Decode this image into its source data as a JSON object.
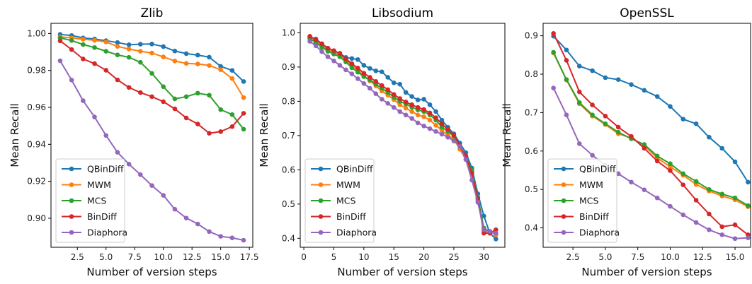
{
  "chart_data": [
    {
      "type": "line",
      "title": "Zlib",
      "xlabel": "Number of version steps",
      "ylabel": "Mean Recall",
      "xlim": [
        0.2,
        17.8
      ],
      "ylim": [
        0.8843,
        1.0055
      ],
      "xticks": [
        2.5,
        5.0,
        7.5,
        10.0,
        12.5,
        15.0,
        17.5
      ],
      "xtick_labels": [
        "2.5",
        "5.0",
        "7.5",
        "10.0",
        "12.5",
        "15.0",
        "17.5"
      ],
      "yticks": [
        0.9,
        0.92,
        0.94,
        0.96,
        0.98,
        1.0
      ],
      "ytick_labels": [
        "0.90",
        "0.92",
        "0.94",
        "0.96",
        "0.98",
        "1.00"
      ],
      "legend_position": "lower-left",
      "x": [
        1,
        2,
        3,
        4,
        5,
        6,
        7,
        8,
        9,
        10,
        11,
        12,
        13,
        14,
        15,
        16,
        17
      ],
      "series": [
        {
          "name": "QBinDiff",
          "color": "#1f77b4",
          "values": [
            0.9995,
            0.9989,
            0.9976,
            0.997,
            0.9961,
            0.9951,
            0.9939,
            0.9942,
            0.9943,
            0.9929,
            0.9905,
            0.9891,
            0.9883,
            0.9872,
            0.9822,
            0.98,
            0.974
          ]
        },
        {
          "name": "MWM",
          "color": "#ff7f0e",
          "values": [
            0.9982,
            0.9976,
            0.9969,
            0.9963,
            0.9954,
            0.993,
            0.9916,
            0.9904,
            0.9894,
            0.9873,
            0.9851,
            0.9838,
            0.9835,
            0.9827,
            0.9804,
            0.9756,
            0.9653
          ]
        },
        {
          "name": "MCS",
          "color": "#2ca02c",
          "values": [
            0.9976,
            0.9962,
            0.994,
            0.9924,
            0.9904,
            0.9884,
            0.9871,
            0.9844,
            0.9784,
            0.9712,
            0.9646,
            0.9658,
            0.9677,
            0.9666,
            0.9588,
            0.9561,
            0.9482
          ]
        },
        {
          "name": "BinDiff",
          "color": "#d62728",
          "values": [
            0.996,
            0.9913,
            0.9862,
            0.9837,
            0.9801,
            0.9749,
            0.9708,
            0.968,
            0.9658,
            0.9631,
            0.9592,
            0.9543,
            0.951,
            0.946,
            0.9469,
            0.9496,
            0.9568
          ]
        },
        {
          "name": "Diaphora",
          "color": "#9467bd",
          "values": [
            0.9852,
            0.9748,
            0.9636,
            0.9548,
            0.9448,
            0.9357,
            0.9293,
            0.9236,
            0.9177,
            0.9124,
            0.9049,
            0.9001,
            0.8969,
            0.8928,
            0.8902,
            0.8894,
            0.8881
          ]
        }
      ]
    },
    {
      "type": "line",
      "title": "Libsodium",
      "xlabel": "Number of version steps",
      "ylabel": "Mean Recall",
      "xlim": [
        -0.6,
        33.5
      ],
      "ylim": [
        0.3738,
        1.0277
      ],
      "xticks": [
        0,
        5,
        10,
        15,
        20,
        25,
        30
      ],
      "xtick_labels": [
        "0",
        "5",
        "10",
        "15",
        "20",
        "25",
        "30"
      ],
      "yticks": [
        0.4,
        0.5,
        0.6,
        0.7,
        0.8,
        0.9,
        1.0
      ],
      "ytick_labels": [
        "0.4",
        "0.5",
        "0.6",
        "0.7",
        "0.8",
        "0.9",
        "1.0"
      ],
      "legend_position": "lower-left",
      "x": [
        1,
        2,
        3,
        4,
        5,
        6,
        7,
        8,
        9,
        10,
        11,
        12,
        13,
        14,
        15,
        16,
        17,
        18,
        19,
        20,
        21,
        22,
        23,
        24,
        25,
        26,
        27,
        28,
        29,
        30,
        31,
        32
      ],
      "series": [
        {
          "name": "QBinDiff",
          "color": "#1f77b4",
          "values": [
            0.988,
            0.982,
            0.968,
            0.955,
            0.947,
            0.94,
            0.928,
            0.925,
            0.922,
            0.905,
            0.896,
            0.889,
            0.886,
            0.87,
            0.854,
            0.85,
            0.826,
            0.814,
            0.804,
            0.806,
            0.79,
            0.77,
            0.745,
            0.724,
            0.705,
            0.678,
            0.65,
            0.605,
            0.53,
            0.465,
            0.415,
            0.398
          ]
        },
        {
          "name": "MWM",
          "color": "#ff7f0e",
          "values": [
            0.985,
            0.975,
            0.962,
            0.95,
            0.942,
            0.935,
            0.92,
            0.905,
            0.89,
            0.875,
            0.86,
            0.845,
            0.83,
            0.818,
            0.805,
            0.79,
            0.78,
            0.77,
            0.76,
            0.755,
            0.745,
            0.73,
            0.715,
            0.7,
            0.69,
            0.66,
            0.63,
            0.59,
            0.51,
            0.42,
            0.42,
            0.41
          ]
        },
        {
          "name": "MCS",
          "color": "#2ca02c",
          "values": [
            0.983,
            0.972,
            0.958,
            0.946,
            0.938,
            0.93,
            0.915,
            0.898,
            0.885,
            0.872,
            0.862,
            0.85,
            0.838,
            0.826,
            0.812,
            0.8,
            0.792,
            0.783,
            0.775,
            0.77,
            0.76,
            0.745,
            0.725,
            0.712,
            0.698,
            0.668,
            0.64,
            0.598,
            0.52,
            0.43,
            0.42,
            0.415
          ]
        },
        {
          "name": "BinDiff",
          "color": "#d62728",
          "values": [
            0.99,
            0.98,
            0.968,
            0.955,
            0.948,
            0.94,
            0.924,
            0.91,
            0.897,
            0.882,
            0.87,
            0.858,
            0.846,
            0.834,
            0.82,
            0.808,
            0.798,
            0.79,
            0.782,
            0.776,
            0.766,
            0.752,
            0.734,
            0.718,
            0.702,
            0.67,
            0.64,
            0.59,
            0.515,
            0.415,
            0.415,
            0.425
          ]
        },
        {
          "name": "Diaphora",
          "color": "#9467bd",
          "values": [
            0.975,
            0.962,
            0.945,
            0.93,
            0.918,
            0.905,
            0.892,
            0.88,
            0.866,
            0.852,
            0.838,
            0.822,
            0.806,
            0.794,
            0.782,
            0.77,
            0.76,
            0.75,
            0.737,
            0.728,
            0.72,
            0.712,
            0.704,
            0.695,
            0.684,
            0.668,
            0.63,
            0.57,
            0.505,
            0.425,
            0.42,
            0.415
          ]
        }
      ]
    },
    {
      "type": "line",
      "title": "OpenSSL",
      "xlabel": "Number of version steps",
      "ylabel": "Mean Recall",
      "xlim": [
        0.2,
        16.2
      ],
      "ylim": [
        0.3495,
        0.9324
      ],
      "xticks": [
        2.5,
        5.0,
        7.5,
        10.0,
        12.5,
        15.0
      ],
      "xtick_labels": [
        "2.5",
        "5.0",
        "7.5",
        "10.0",
        "12.5",
        "15.0"
      ],
      "yticks": [
        0.4,
        0.5,
        0.6,
        0.7,
        0.8,
        0.9
      ],
      "ytick_labels": [
        "0.4",
        "0.5",
        "0.6",
        "0.7",
        "0.8",
        "0.9"
      ],
      "legend_position": "lower-left",
      "x": [
        1,
        2,
        3,
        4,
        5,
        6,
        7,
        8,
        9,
        10,
        11,
        12,
        13,
        14,
        15,
        16
      ],
      "series": [
        {
          "name": "QBinDiff",
          "color": "#1f77b4",
          "values": [
            0.899,
            0.863,
            0.821,
            0.809,
            0.791,
            0.786,
            0.773,
            0.758,
            0.742,
            0.716,
            0.683,
            0.671,
            0.636,
            0.607,
            0.572,
            0.519
          ]
        },
        {
          "name": "MWM",
          "color": "#ff7f0e",
          "values": [
            0.855,
            0.785,
            0.723,
            0.691,
            0.669,
            0.645,
            0.634,
            0.614,
            0.582,
            0.559,
            0.537,
            0.513,
            0.496,
            0.483,
            0.473,
            0.455
          ]
        },
        {
          "name": "MCS",
          "color": "#2ca02c",
          "values": [
            0.857,
            0.786,
            0.726,
            0.694,
            0.671,
            0.649,
            0.632,
            0.617,
            0.587,
            0.567,
            0.541,
            0.521,
            0.5,
            0.488,
            0.478,
            0.458
          ]
        },
        {
          "name": "BinDiff",
          "color": "#d62728",
          "values": [
            0.906,
            0.836,
            0.754,
            0.72,
            0.691,
            0.662,
            0.638,
            0.607,
            0.574,
            0.549,
            0.512,
            0.472,
            0.436,
            0.403,
            0.408,
            0.382
          ]
        },
        {
          "name": "Diaphora",
          "color": "#9467bd",
          "values": [
            0.764,
            0.694,
            0.619,
            0.589,
            0.563,
            0.541,
            0.519,
            0.499,
            0.478,
            0.456,
            0.434,
            0.414,
            0.395,
            0.382,
            0.372,
            0.374
          ]
        }
      ]
    }
  ]
}
